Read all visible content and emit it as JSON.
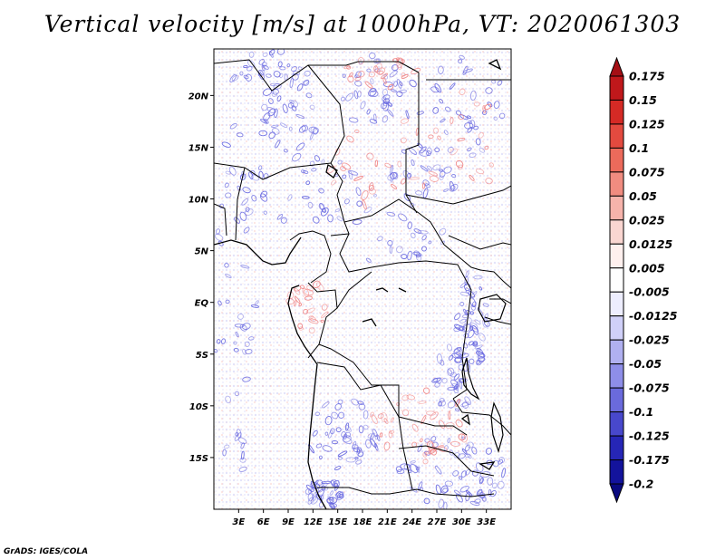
{
  "title": "Vertical velocity [m/s] at 1000hPa, VT: 2020061303",
  "credit": "GrADS: IGES/COLA",
  "map": {
    "lon_range": [
      0,
      36
    ],
    "lat_range": [
      -20,
      24.5
    ],
    "lon_ticks": [
      "3E",
      "6E",
      "9E",
      "12E",
      "15E",
      "18E",
      "21E",
      "24E",
      "27E",
      "30E",
      "33E"
    ],
    "lat_ticks": [
      "20N",
      "15N",
      "10N",
      "5N",
      "EQ",
      "5S",
      "10S",
      "15S"
    ],
    "field_colors": {
      "positive": "#f08080",
      "negative": "#6666e0"
    }
  },
  "colorbar": {
    "labels": [
      "0.175",
      "0.15",
      "0.125",
      "0.1",
      "0.075",
      "0.05",
      "0.025",
      "0.0125",
      "0.005",
      "-0.005",
      "-0.0125",
      "-0.025",
      "-0.05",
      "-0.075",
      "-0.1",
      "-0.125",
      "-0.175",
      "-0.2"
    ],
    "colors": [
      "#a50f15",
      "#c0181b",
      "#d52a25",
      "#e34a3f",
      "#ec6a5b",
      "#f08c80",
      "#f6b3ab",
      "#fad6d1",
      "#fff0ee",
      "#ffffff",
      "#eeeeff",
      "#d0d0f8",
      "#b0b0f0",
      "#8e8ee8",
      "#6a6adc",
      "#4848cc",
      "#2626b6",
      "#13139c",
      "#0a0a80"
    ]
  }
}
